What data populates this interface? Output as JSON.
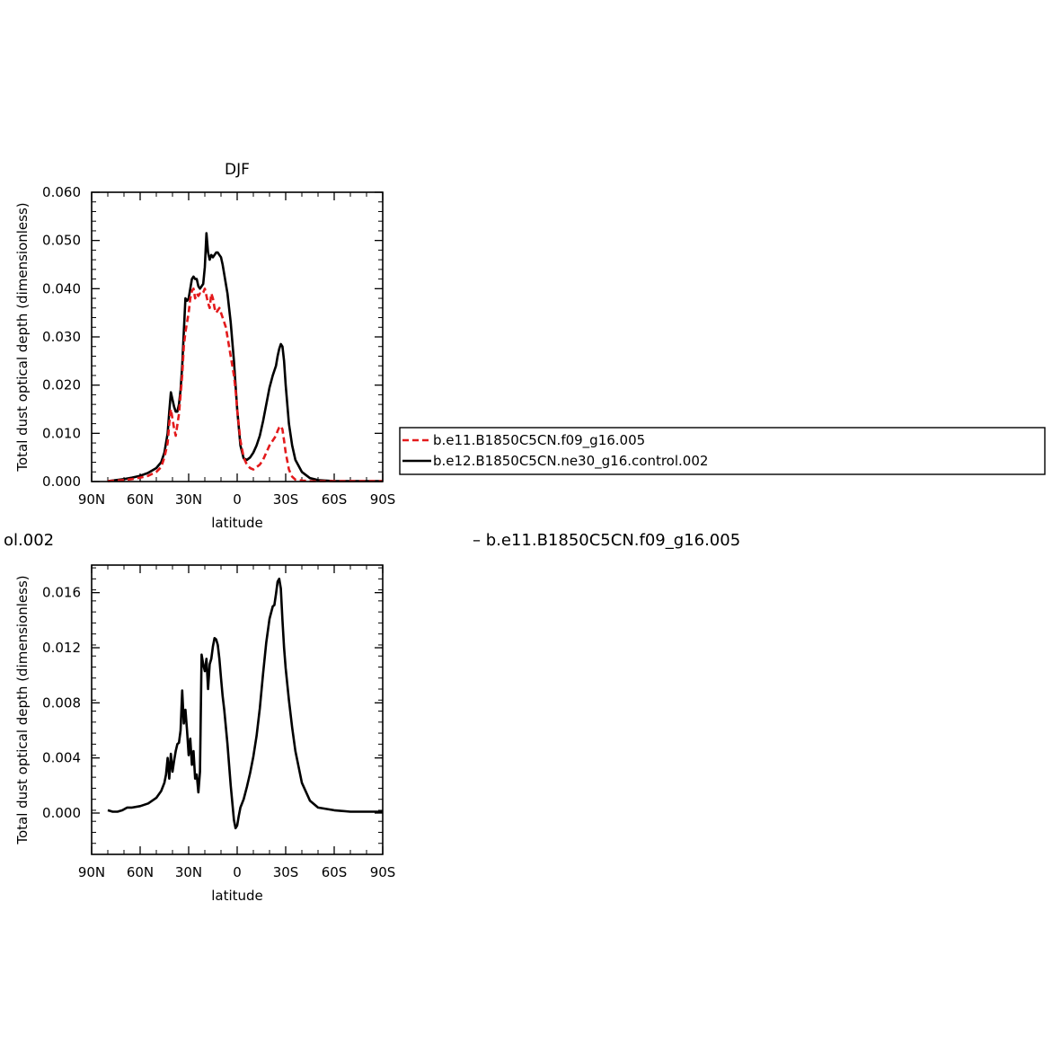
{
  "chart_data": [
    {
      "type": "line",
      "title": "DJF",
      "xlabel": "latitude",
      "ylabel": "Total dust optical depth (dimensionless)",
      "xlim": [
        90,
        -90
      ],
      "ylim": [
        0,
        0.06
      ],
      "x_ticks": [
        90,
        60,
        30,
        0,
        -30,
        -60,
        -90
      ],
      "x_tick_labels": [
        "90N",
        "60N",
        "30N",
        "0",
        "30S",
        "60S",
        "90S"
      ],
      "y_ticks": [
        0,
        0.01,
        0.02,
        0.03,
        0.04,
        0.05,
        0.06
      ],
      "y_tick_labels": [
        "0.000",
        "0.010",
        "0.020",
        "0.030",
        "0.040",
        "0.050",
        "0.060"
      ],
      "grid": false,
      "legend_position": "right",
      "series": [
        {
          "name": "b.e11.B1850C5CN.f09_g16.005",
          "color": "#e31a1c",
          "dash": "dashed",
          "x": [
            80,
            75,
            70,
            65,
            60,
            55,
            50,
            47,
            45,
            43,
            42,
            41,
            40,
            39,
            38,
            36,
            34,
            33,
            32,
            30,
            29,
            28,
            27,
            26,
            25,
            24,
            23,
            22,
            21,
            20,
            19,
            18,
            17,
            16,
            15,
            14,
            13,
            12,
            11,
            10,
            9,
            8,
            7,
            6,
            5,
            4,
            3,
            2,
            1,
            0,
            -2,
            -4,
            -6,
            -8,
            -10,
            -12,
            -14,
            -16,
            -18,
            -20,
            -22,
            -24,
            -25,
            -26,
            -27,
            -28,
            -29,
            -30,
            -32,
            -34,
            -36,
            -40,
            -45,
            -50,
            -60,
            -70,
            -80,
            -90
          ],
          "y": [
            0.0001,
            0.0002,
            0.0003,
            0.0005,
            0.0008,
            0.0012,
            0.002,
            0.003,
            0.005,
            0.008,
            0.012,
            0.015,
            0.013,
            0.011,
            0.0095,
            0.014,
            0.022,
            0.028,
            0.031,
            0.035,
            0.038,
            0.0395,
            0.04,
            0.038,
            0.039,
            0.0385,
            0.039,
            0.0388,
            0.0392,
            0.04,
            0.0385,
            0.037,
            0.036,
            0.039,
            0.038,
            0.036,
            0.035,
            0.0355,
            0.036,
            0.035,
            0.034,
            0.033,
            0.032,
            0.03,
            0.028,
            0.026,
            0.024,
            0.022,
            0.019,
            0.015,
            0.0085,
            0.005,
            0.0035,
            0.0028,
            0.0025,
            0.003,
            0.0035,
            0.0045,
            0.006,
            0.0075,
            0.0085,
            0.0095,
            0.0105,
            0.0112,
            0.0115,
            0.0108,
            0.0085,
            0.006,
            0.0025,
            0.001,
            0.0004,
            0.0002,
            0.0001,
            0.0001,
            0.0001,
            0.0001,
            0.0001,
            0.0001
          ]
        },
        {
          "name": "b.e12.B1850C5CN.ne30_g16.control.002",
          "color": "#000000",
          "dash": "solid",
          "x": [
            80,
            75,
            70,
            65,
            60,
            55,
            50,
            47,
            45,
            43,
            42,
            41,
            40,
            39,
            38,
            37,
            36,
            35,
            34,
            33,
            32,
            31,
            30,
            29,
            28,
            27,
            26,
            25,
            24,
            23,
            22,
            21,
            20,
            19,
            18,
            17,
            16,
            15,
            14,
            13,
            12,
            11,
            10,
            9,
            8,
            7,
            6,
            5,
            4,
            3,
            2,
            1,
            0,
            -2,
            -4,
            -6,
            -8,
            -10,
            -12,
            -14,
            -16,
            -18,
            -20,
            -22,
            -24,
            -25,
            -26,
            -27,
            -28,
            -29,
            -30,
            -32,
            -34,
            -36,
            -40,
            -45,
            -50,
            -60,
            -70,
            -80,
            -90
          ],
          "y": [
            0.0001,
            0.0003,
            0.0005,
            0.0008,
            0.0012,
            0.0018,
            0.0028,
            0.004,
            0.006,
            0.01,
            0.0145,
            0.0185,
            0.017,
            0.0155,
            0.0145,
            0.0145,
            0.016,
            0.019,
            0.024,
            0.031,
            0.038,
            0.0375,
            0.038,
            0.04,
            0.042,
            0.0425,
            0.042,
            0.042,
            0.0405,
            0.04,
            0.0405,
            0.041,
            0.0445,
            0.0515,
            0.0475,
            0.046,
            0.047,
            0.0465,
            0.047,
            0.0475,
            0.0475,
            0.047,
            0.0465,
            0.045,
            0.043,
            0.041,
            0.039,
            0.036,
            0.033,
            0.029,
            0.025,
            0.02,
            0.015,
            0.0075,
            0.0048,
            0.0045,
            0.005,
            0.006,
            0.0075,
            0.0095,
            0.0125,
            0.016,
            0.0195,
            0.022,
            0.024,
            0.026,
            0.0275,
            0.0285,
            0.028,
            0.025,
            0.02,
            0.012,
            0.0075,
            0.0045,
            0.002,
            0.0007,
            0.0003,
            0.0001,
            0.0001,
            0.0001,
            0.0001
          ]
        }
      ]
    },
    {
      "type": "line",
      "title": "",
      "xlabel": "latitude",
      "ylabel": "Total dust optical depth (dimensionless)",
      "xlim": [
        90,
        -90
      ],
      "ylim": [
        -0.003,
        0.018
      ],
      "x_ticks": [
        90,
        60,
        30,
        0,
        -30,
        -60,
        -90
      ],
      "x_tick_labels": [
        "90N",
        "60N",
        "30N",
        "0",
        "30S",
        "60S",
        "90S"
      ],
      "y_ticks": [
        0,
        0.004,
        0.008,
        0.012,
        0.016
      ],
      "y_tick_labels": [
        "0.000",
        "0.004",
        "0.008",
        "0.012",
        "0.016"
      ],
      "grid": false,
      "header_left": "ol.002",
      "header_right": "– b.e11.B1850C5CN.f09_g16.005",
      "series": [
        {
          "color": "#000000",
          "dash": "solid",
          "x": [
            80,
            77,
            74,
            71,
            68,
            65,
            60,
            55,
            50,
            47,
            45,
            44,
            43,
            42,
            41,
            40,
            39,
            38,
            37,
            36,
            35,
            34,
            33,
            32,
            31,
            30,
            29,
            28,
            27,
            26,
            25,
            24,
            23,
            22,
            21,
            20,
            19,
            18,
            17,
            16,
            15,
            14,
            13,
            12,
            11,
            10,
            9,
            8,
            6,
            4,
            2,
            1,
            0,
            -1,
            -2,
            -4,
            -6,
            -8,
            -10,
            -12,
            -14,
            -16,
            -18,
            -20,
            -22,
            -23,
            -24,
            -25,
            -26,
            -27,
            -28,
            -29,
            -30,
            -32,
            -34,
            -36,
            -40,
            -45,
            -50,
            -60,
            -70,
            -80,
            -90
          ],
          "y": [
            0.0002,
            0.0001,
            0.0001,
            0.0002,
            0.0004,
            0.0004,
            0.0005,
            0.0007,
            0.0011,
            0.0016,
            0.0022,
            0.0028,
            0.004,
            0.0025,
            0.0043,
            0.003,
            0.0038,
            0.0045,
            0.005,
            0.0051,
            0.006,
            0.0089,
            0.0065,
            0.0075,
            0.006,
            0.0042,
            0.0054,
            0.0035,
            0.0045,
            0.0025,
            0.0028,
            0.0015,
            0.003,
            0.0115,
            0.0108,
            0.0103,
            0.0112,
            0.009,
            0.0108,
            0.0112,
            0.0121,
            0.0127,
            0.0126,
            0.0122,
            0.0112,
            0.0098,
            0.0085,
            0.0075,
            0.005,
            0.002,
            -0.0005,
            -0.0011,
            -0.0009,
            -0.0002,
            0.0004,
            0.001,
            0.0019,
            0.0029,
            0.0041,
            0.0056,
            0.0076,
            0.0101,
            0.0124,
            0.0141,
            0.015,
            0.0151,
            0.0159,
            0.0168,
            0.017,
            0.0163,
            0.014,
            0.012,
            0.0105,
            0.0082,
            0.0062,
            0.0045,
            0.0022,
            0.0009,
            0.0004,
            0.0002,
            0.0001,
            0.0001,
            0.0001
          ]
        }
      ]
    }
  ]
}
